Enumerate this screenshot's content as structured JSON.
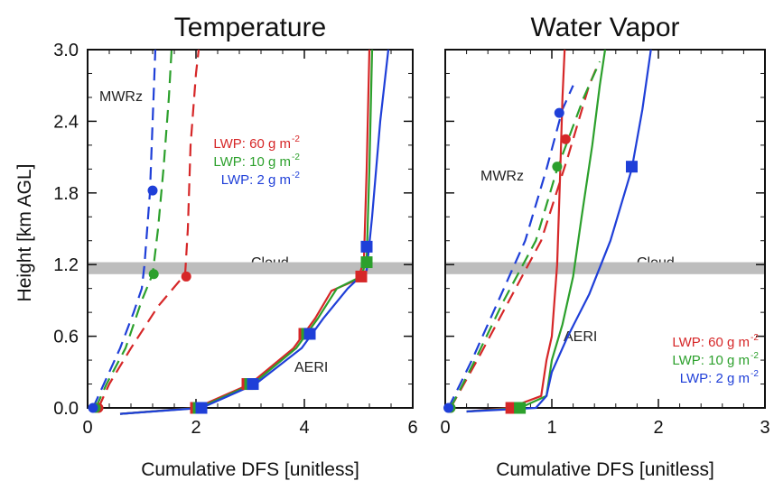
{
  "chart_data": [
    {
      "type": "line",
      "title": "Temperature",
      "xlabel": "Cumulative DFS [unitless]",
      "ylabel": "Height [km AGL]",
      "xlim": [
        0,
        6
      ],
      "ylim": [
        0,
        3
      ],
      "xticks": [
        "0",
        "2",
        "4",
        "6"
      ],
      "yticks": [
        "0.0",
        "0.6",
        "1.2",
        "1.8",
        "2.4",
        "3.0"
      ],
      "cloud": {
        "label": "Cloud",
        "y": [
          1.12,
          1.22
        ]
      },
      "annotations": {
        "mwr": "MWRz",
        "aeri": "AERI"
      },
      "legend": [
        {
          "text": "LWP: 60 g m",
          "sup": "-2",
          "color": "#d62728"
        },
        {
          "text": "LWP: 10 g m",
          "sup": "-2",
          "color": "#2ca02c"
        },
        {
          "text": "LWP: 2 g m",
          "sup": "-2",
          "color": "#1f3fd8"
        }
      ],
      "series": [
        {
          "color": "#d62728",
          "dashed": true,
          "points": [
            [
              0.2,
              0.0
            ],
            [
              0.4,
              0.2
            ],
            [
              0.8,
              0.5
            ],
            [
              1.3,
              0.85
            ],
            [
              1.8,
              1.12
            ],
            [
              1.85,
              1.5
            ],
            [
              1.9,
              2.2
            ],
            [
              2.0,
              2.8
            ],
            [
              2.05,
              3.0
            ]
          ],
          "marker": [
            1.82,
            1.1
          ]
        },
        {
          "color": "#2ca02c",
          "dashed": true,
          "points": [
            [
              0.15,
              0.0
            ],
            [
              0.35,
              0.2
            ],
            [
              0.7,
              0.5
            ],
            [
              1.0,
              0.9
            ],
            [
              1.2,
              1.12
            ],
            [
              1.3,
              1.5
            ],
            [
              1.4,
              2.0
            ],
            [
              1.5,
              2.6
            ],
            [
              1.55,
              3.0
            ]
          ],
          "marker": [
            1.22,
            1.12
          ]
        },
        {
          "color": "#1f3fd8",
          "dashed": true,
          "points": [
            [
              0.1,
              0.0
            ],
            [
              0.3,
              0.2
            ],
            [
              0.6,
              0.5
            ],
            [
              0.85,
              0.8
            ],
            [
              1.0,
              1.0
            ],
            [
              1.05,
              1.2
            ],
            [
              1.15,
              1.8
            ],
            [
              1.2,
              2.4
            ],
            [
              1.25,
              3.0
            ]
          ],
          "marker": [
            1.2,
            1.82
          ]
        },
        {
          "color": "#d62728",
          "dashed": false,
          "points": [
            [
              0.6,
              -0.05
            ],
            [
              2.0,
              0.0
            ],
            [
              3.0,
              0.2
            ],
            [
              3.8,
              0.5
            ],
            [
              4.2,
              0.75
            ],
            [
              4.5,
              0.98
            ],
            [
              5.0,
              1.08
            ],
            [
              5.1,
              1.25
            ],
            [
              5.15,
              2.0
            ],
            [
              5.2,
              3.0
            ]
          ],
          "markers": [
            [
              2.0,
              0.0
            ],
            [
              2.95,
              0.2
            ],
            [
              4.0,
              0.62
            ],
            [
              5.05,
              1.1
            ]
          ]
        },
        {
          "color": "#2ca02c",
          "dashed": false,
          "points": [
            [
              0.6,
              -0.05
            ],
            [
              2.05,
              0.0
            ],
            [
              3.05,
              0.2
            ],
            [
              3.85,
              0.5
            ],
            [
              4.25,
              0.75
            ],
            [
              4.6,
              1.0
            ],
            [
              5.05,
              1.1
            ],
            [
              5.15,
              1.25
            ],
            [
              5.2,
              2.0
            ],
            [
              5.25,
              3.0
            ]
          ],
          "markers": [
            [
              2.05,
              0.0
            ],
            [
              3.0,
              0.2
            ],
            [
              4.05,
              0.62
            ],
            [
              5.15,
              1.22
            ]
          ]
        },
        {
          "color": "#1f3fd8",
          "dashed": false,
          "points": [
            [
              0.6,
              -0.05
            ],
            [
              2.1,
              0.0
            ],
            [
              3.1,
              0.2
            ],
            [
              3.95,
              0.5
            ],
            [
              4.35,
              0.75
            ],
            [
              4.8,
              1.0
            ],
            [
              5.15,
              1.15
            ],
            [
              5.25,
              1.6
            ],
            [
              5.4,
              2.4
            ],
            [
              5.55,
              3.0
            ]
          ],
          "markers": [
            [
              2.1,
              0.0
            ],
            [
              3.05,
              0.2
            ],
            [
              4.1,
              0.62
            ],
            [
              5.15,
              1.35
            ]
          ]
        }
      ],
      "mwr_base": [
        [
          0.2,
          0.0
        ],
        [
          0.15,
          0.0
        ],
        [
          0.1,
          0.0
        ]
      ]
    },
    {
      "type": "line",
      "title": "Water Vapor",
      "xlabel": "Cumulative DFS [unitless]",
      "ylabel": "",
      "xlim": [
        0,
        3
      ],
      "ylim": [
        0,
        3
      ],
      "xticks": [
        "0",
        "1",
        "2",
        "3"
      ],
      "yticks": [],
      "cloud": {
        "label": "Cloud",
        "y": [
          1.12,
          1.22
        ]
      },
      "annotations": {
        "mwr": "MWRz",
        "aeri": "AERI"
      },
      "legend": [
        {
          "text": "LWP: 60 g m",
          "sup": "-2",
          "color": "#d62728"
        },
        {
          "text": "LWP: 10 g m",
          "sup": "-2",
          "color": "#2ca02c"
        },
        {
          "text": "LWP: 2 g m",
          "sup": "-2",
          "color": "#1f3fd8"
        }
      ],
      "series": [
        {
          "color": "#d62728",
          "dashed": true,
          "points": [
            [
              0.05,
              0.0
            ],
            [
              0.3,
              0.4
            ],
            [
              0.6,
              0.9
            ],
            [
              0.9,
              1.4
            ],
            [
              1.15,
              2.1
            ],
            [
              1.35,
              2.7
            ],
            [
              1.42,
              2.85
            ]
          ],
          "marker": [
            1.13,
            2.25
          ]
        },
        {
          "color": "#2ca02c",
          "dashed": true,
          "points": [
            [
              0.05,
              0.0
            ],
            [
              0.28,
              0.4
            ],
            [
              0.55,
              0.9
            ],
            [
              0.85,
              1.4
            ],
            [
              1.05,
              2.0
            ],
            [
              1.3,
              2.6
            ],
            [
              1.45,
              2.9
            ]
          ],
          "marker": [
            1.05,
            2.02
          ]
        },
        {
          "color": "#1f3fd8",
          "dashed": true,
          "points": [
            [
              0.03,
              0.0
            ],
            [
              0.25,
              0.4
            ],
            [
              0.5,
              0.9
            ],
            [
              0.75,
              1.4
            ],
            [
              0.95,
              2.0
            ],
            [
              1.1,
              2.5
            ],
            [
              1.2,
              2.7
            ]
          ],
          "marker": [
            1.07,
            2.47
          ]
        },
        {
          "color": "#d62728",
          "dashed": false,
          "points": [
            [
              0.2,
              -0.03
            ],
            [
              0.6,
              0.0
            ],
            [
              0.9,
              0.1
            ],
            [
              0.95,
              0.4
            ],
            [
              1.0,
              0.6
            ],
            [
              1.05,
              1.2
            ],
            [
              1.08,
              2.0
            ],
            [
              1.1,
              2.6
            ],
            [
              1.12,
              3.0
            ]
          ],
          "markers": [
            [
              0.62,
              0.0
            ]
          ]
        },
        {
          "color": "#2ca02c",
          "dashed": false,
          "points": [
            [
              0.2,
              -0.03
            ],
            [
              0.7,
              0.0
            ],
            [
              0.95,
              0.1
            ],
            [
              1.0,
              0.4
            ],
            [
              1.1,
              0.7
            ],
            [
              1.2,
              1.1
            ],
            [
              1.28,
              1.6
            ],
            [
              1.38,
              2.2
            ],
            [
              1.45,
              2.7
            ],
            [
              1.5,
              3.0
            ]
          ],
          "markers": [
            [
              0.7,
              0.0
            ]
          ]
        },
        {
          "color": "#1f3fd8",
          "dashed": false,
          "points": [
            [
              0.2,
              -0.03
            ],
            [
              0.85,
              0.0
            ],
            [
              0.95,
              0.1
            ],
            [
              1.0,
              0.3
            ],
            [
              1.15,
              0.6
            ],
            [
              1.35,
              0.95
            ],
            [
              1.55,
              1.4
            ],
            [
              1.75,
              2.0
            ],
            [
              1.85,
              2.5
            ],
            [
              1.93,
              3.0
            ]
          ],
          "markers": [
            [
              1.75,
              2.02
            ]
          ]
        }
      ],
      "mwr_base": [
        [
          0.05,
          0.0
        ],
        [
          0.05,
          0.0
        ],
        [
          0.03,
          0.0
        ]
      ]
    }
  ]
}
